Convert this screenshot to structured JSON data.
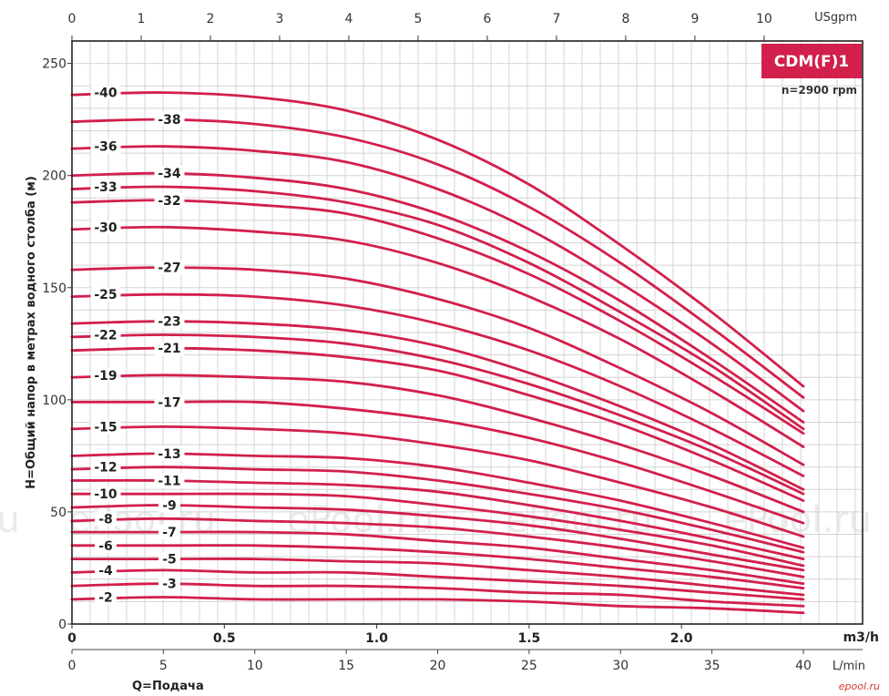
{
  "colors": {
    "curve": "#d21f4b",
    "badge": "#d21f4b",
    "grid": "#d4d4d4",
    "frame": "#222222"
  },
  "badge": {
    "title": "CDM(F)1",
    "subtitle": "n=2900 rpm"
  },
  "axes": {
    "ylabel": "H=Общий напор в метрах водного столба (м)",
    "xlabel": "Q=Подача",
    "top_unit": "USgpm",
    "m3h_unit": "m3/h",
    "lmin_unit": "L/min"
  },
  "ticks": {
    "top": [
      "0",
      "1",
      "2",
      "3",
      "4",
      "5",
      "6",
      "7",
      "8",
      "9",
      "10"
    ],
    "y": [
      "0",
      "50",
      "100",
      "150",
      "200",
      "250"
    ],
    "m3h": [
      "0",
      "0.5",
      "1.0",
      "1.5",
      "2.0"
    ],
    "lmin": [
      "0",
      "5",
      "10",
      "15",
      "20",
      "25",
      "30",
      "35",
      "40"
    ]
  },
  "watermarks": [
    "ePool.ru",
    "ePool.ru",
    "ePool.ru",
    "ePool.ru",
    "ePool.ru"
  ],
  "site_mark": "epool.ru",
  "chart_data": {
    "type": "line",
    "xlabel": "Q=Подача",
    "ylabel": "H=Общий напор в метрах водного столба (м)",
    "x_unit": "L/min",
    "x_range": [
      0,
      40
    ],
    "y_range": [
      0,
      260
    ],
    "x_secondary_top": {
      "unit": "USgpm",
      "range": [
        0,
        10.57
      ]
    },
    "x_secondary_bottom": {
      "unit": "m3/h",
      "range": [
        0,
        2.4
      ]
    },
    "grid": true,
    "legend": "inline curve labels",
    "series": [
      {
        "name": "-40",
        "x": [
          0,
          5,
          10,
          15,
          20,
          25,
          30,
          35,
          40
        ],
        "y": [
          236,
          237,
          235,
          229,
          216,
          196,
          169,
          139,
          106
        ]
      },
      {
        "name": "-38",
        "x": [
          0,
          5,
          10,
          15,
          20,
          25,
          30,
          35,
          40
        ],
        "y": [
          224,
          225,
          223,
          217,
          205,
          186,
          161,
          132,
          101
        ]
      },
      {
        "name": "-36",
        "x": [
          0,
          5,
          10,
          15,
          20,
          25,
          30,
          35,
          40
        ],
        "y": [
          212,
          213,
          211,
          206,
          194,
          176,
          152,
          125,
          95
        ]
      },
      {
        "name": "-34",
        "x": [
          0,
          5,
          10,
          15,
          20,
          25,
          30,
          35,
          40
        ],
        "y": [
          200,
          201,
          199,
          194,
          183,
          166,
          144,
          118,
          90
        ]
      },
      {
        "name": "-33",
        "x": [
          0,
          5,
          10,
          15,
          20,
          25,
          30,
          35,
          40
        ],
        "y": [
          194,
          195,
          193,
          188,
          178,
          161,
          139,
          115,
          87
        ]
      },
      {
        "name": "-32",
        "x": [
          0,
          5,
          10,
          15,
          20,
          25,
          30,
          35,
          40
        ],
        "y": [
          188,
          189,
          187,
          183,
          172,
          156,
          135,
          111,
          85
        ]
      },
      {
        "name": "-30",
        "x": [
          0,
          5,
          10,
          15,
          20,
          25,
          30,
          35,
          40
        ],
        "y": [
          176,
          177,
          175,
          171,
          161,
          146,
          127,
          104,
          79
        ]
      },
      {
        "name": "-27",
        "x": [
          0,
          5,
          10,
          15,
          20,
          25,
          30,
          35,
          40
        ],
        "y": [
          158,
          159,
          158,
          154,
          145,
          132,
          114,
          94,
          71
        ]
      },
      {
        "name": "-25",
        "x": [
          0,
          5,
          10,
          15,
          20,
          25,
          30,
          35,
          40
        ],
        "y": [
          146,
          147,
          146,
          142,
          134,
          122,
          106,
          87,
          66
        ]
      },
      {
        "name": "-23",
        "x": [
          0,
          5,
          10,
          15,
          20,
          25,
          30,
          35,
          40
        ],
        "y": [
          134,
          135,
          134,
          131,
          124,
          112,
          97,
          80,
          60
        ]
      },
      {
        "name": "-22",
        "x": [
          0,
          5,
          10,
          15,
          20,
          25,
          30,
          35,
          40
        ],
        "y": [
          128,
          129,
          128,
          125,
          118,
          107,
          93,
          77,
          58
        ]
      },
      {
        "name": "-21",
        "x": [
          0,
          5,
          10,
          15,
          20,
          25,
          30,
          35,
          40
        ],
        "y": [
          122,
          123,
          122,
          119,
          113,
          102,
          89,
          73,
          55
        ]
      },
      {
        "name": "-19",
        "x": [
          0,
          5,
          10,
          15,
          20,
          25,
          30,
          35,
          40
        ],
        "y": [
          110,
          111,
          110,
          108,
          102,
          92,
          80,
          66,
          50
        ]
      },
      {
        "name": "-17",
        "x": [
          0,
          5,
          10,
          15,
          20,
          25,
          30,
          35,
          40
        ],
        "y": [
          99,
          99,
          99,
          96,
          91,
          83,
          72,
          59,
          45
        ]
      },
      {
        "name": "-15",
        "x": [
          0,
          5,
          10,
          15,
          20,
          25,
          30,
          35,
          40
        ],
        "y": [
          87,
          88,
          87,
          85,
          80,
          73,
          63,
          52,
          39
        ]
      },
      {
        "name": "-13",
        "x": [
          0,
          5,
          10,
          15,
          20,
          25,
          30,
          35,
          40
        ],
        "y": [
          75,
          76,
          75,
          74,
          70,
          63,
          55,
          45,
          34
        ]
      },
      {
        "name": "-12",
        "x": [
          0,
          5,
          10,
          15,
          20,
          25,
          30,
          35,
          40
        ],
        "y": [
          69,
          70,
          69,
          68,
          64,
          58,
          51,
          42,
          32
        ]
      },
      {
        "name": "-11",
        "x": [
          0,
          5,
          10,
          15,
          20,
          25,
          30,
          35,
          40
        ],
        "y": [
          64,
          64,
          63,
          62,
          59,
          53,
          46,
          38,
          29
        ]
      },
      {
        "name": "-10",
        "x": [
          0,
          5,
          10,
          15,
          20,
          25,
          30,
          35,
          40
        ],
        "y": [
          58,
          58,
          58,
          57,
          53,
          48,
          42,
          35,
          26
        ]
      },
      {
        "name": "-9",
        "x": [
          0,
          5,
          10,
          15,
          20,
          25,
          30,
          35,
          40
        ],
        "y": [
          52,
          53,
          52,
          51,
          48,
          44,
          38,
          31,
          24
        ]
      },
      {
        "name": "-8",
        "x": [
          0,
          5,
          10,
          15,
          20,
          25,
          30,
          35,
          40
        ],
        "y": [
          46,
          47,
          46,
          45,
          43,
          39,
          34,
          28,
          21
        ]
      },
      {
        "name": "-7",
        "x": [
          0,
          5,
          10,
          15,
          20,
          25,
          30,
          35,
          40
        ],
        "y": [
          41,
          41,
          41,
          40,
          37,
          34,
          29,
          24,
          18
        ]
      },
      {
        "name": "-6",
        "x": [
          0,
          5,
          10,
          15,
          20,
          25,
          30,
          35,
          40
        ],
        "y": [
          35,
          35,
          35,
          34,
          32,
          29,
          25,
          21,
          16
        ]
      },
      {
        "name": "-5",
        "x": [
          0,
          5,
          10,
          15,
          20,
          25,
          30,
          35,
          40
        ],
        "y": [
          29,
          29,
          29,
          28,
          27,
          24,
          21,
          17,
          13
        ]
      },
      {
        "name": "-4",
        "x": [
          0,
          5,
          10,
          15,
          20,
          25,
          30,
          35,
          40
        ],
        "y": [
          23,
          24,
          23,
          23,
          21,
          19,
          17,
          14,
          11
        ]
      },
      {
        "name": "-3",
        "x": [
          0,
          5,
          10,
          15,
          20,
          25,
          30,
          35,
          40
        ],
        "y": [
          17,
          18,
          17,
          17,
          16,
          14,
          13,
          10,
          8
        ]
      },
      {
        "name": "-2",
        "x": [
          0,
          5,
          10,
          15,
          20,
          25,
          30,
          35,
          40
        ],
        "y": [
          11,
          12,
          11,
          11,
          11,
          10,
          8,
          7,
          5
        ]
      }
    ]
  }
}
